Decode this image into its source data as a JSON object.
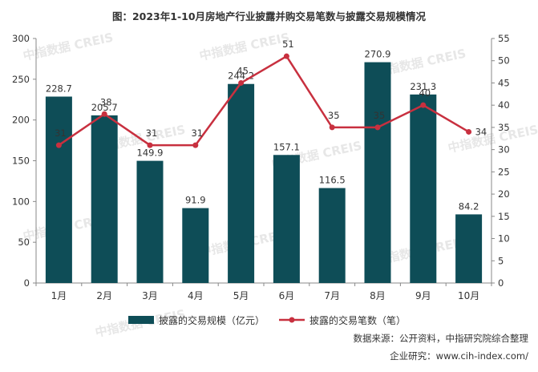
{
  "chart_data": {
    "type": "bar+line",
    "title": "图：2023年1-10月房地产行业披露并购交易笔数与披露交易规模情况",
    "categories": [
      "1月",
      "2月",
      "3月",
      "4月",
      "5月",
      "6月",
      "7月",
      "8月",
      "9月",
      "10月"
    ],
    "series": [
      {
        "name": "披露的交易规模（亿元）",
        "type": "bar",
        "axis": "left",
        "values": [
          228.7,
          205.7,
          149.9,
          91.9,
          244.2,
          157.1,
          116.5,
          270.9,
          231.3,
          84.2
        ],
        "value_labels": [
          "228.7",
          "205.7",
          "149.9",
          "91.9",
          "244.2",
          "157.1",
          "116.5",
          "270.9",
          "231.3",
          "84.2"
        ],
        "color": "#0e4d57"
      },
      {
        "name": "披露的交易笔数（笔）",
        "type": "line",
        "axis": "right",
        "values": [
          31,
          38,
          31,
          31,
          45,
          51,
          35,
          35,
          40,
          34
        ],
        "value_labels": [
          "31",
          "38",
          "31",
          "31",
          "45",
          "51",
          "35",
          "35",
          "40",
          "34"
        ],
        "color": "#c8303f"
      }
    ],
    "ylim_left": [
      0,
      300
    ],
    "yticks_left": [
      "0",
      "50",
      "100",
      "150",
      "200",
      "250",
      "300"
    ],
    "ylim_right": [
      0,
      55
    ],
    "yticks_right": [
      "0",
      "5",
      "10",
      "15",
      "20",
      "25",
      "30",
      "35",
      "40",
      "45",
      "50",
      "55"
    ],
    "grid": false,
    "legend_position": "bottom"
  },
  "watermark": "中指数据 CREIS",
  "footer": {
    "source": "数据来源：公开资料，中指研究院综合整理",
    "website": "企业研究：www.cih-index.com/"
  }
}
